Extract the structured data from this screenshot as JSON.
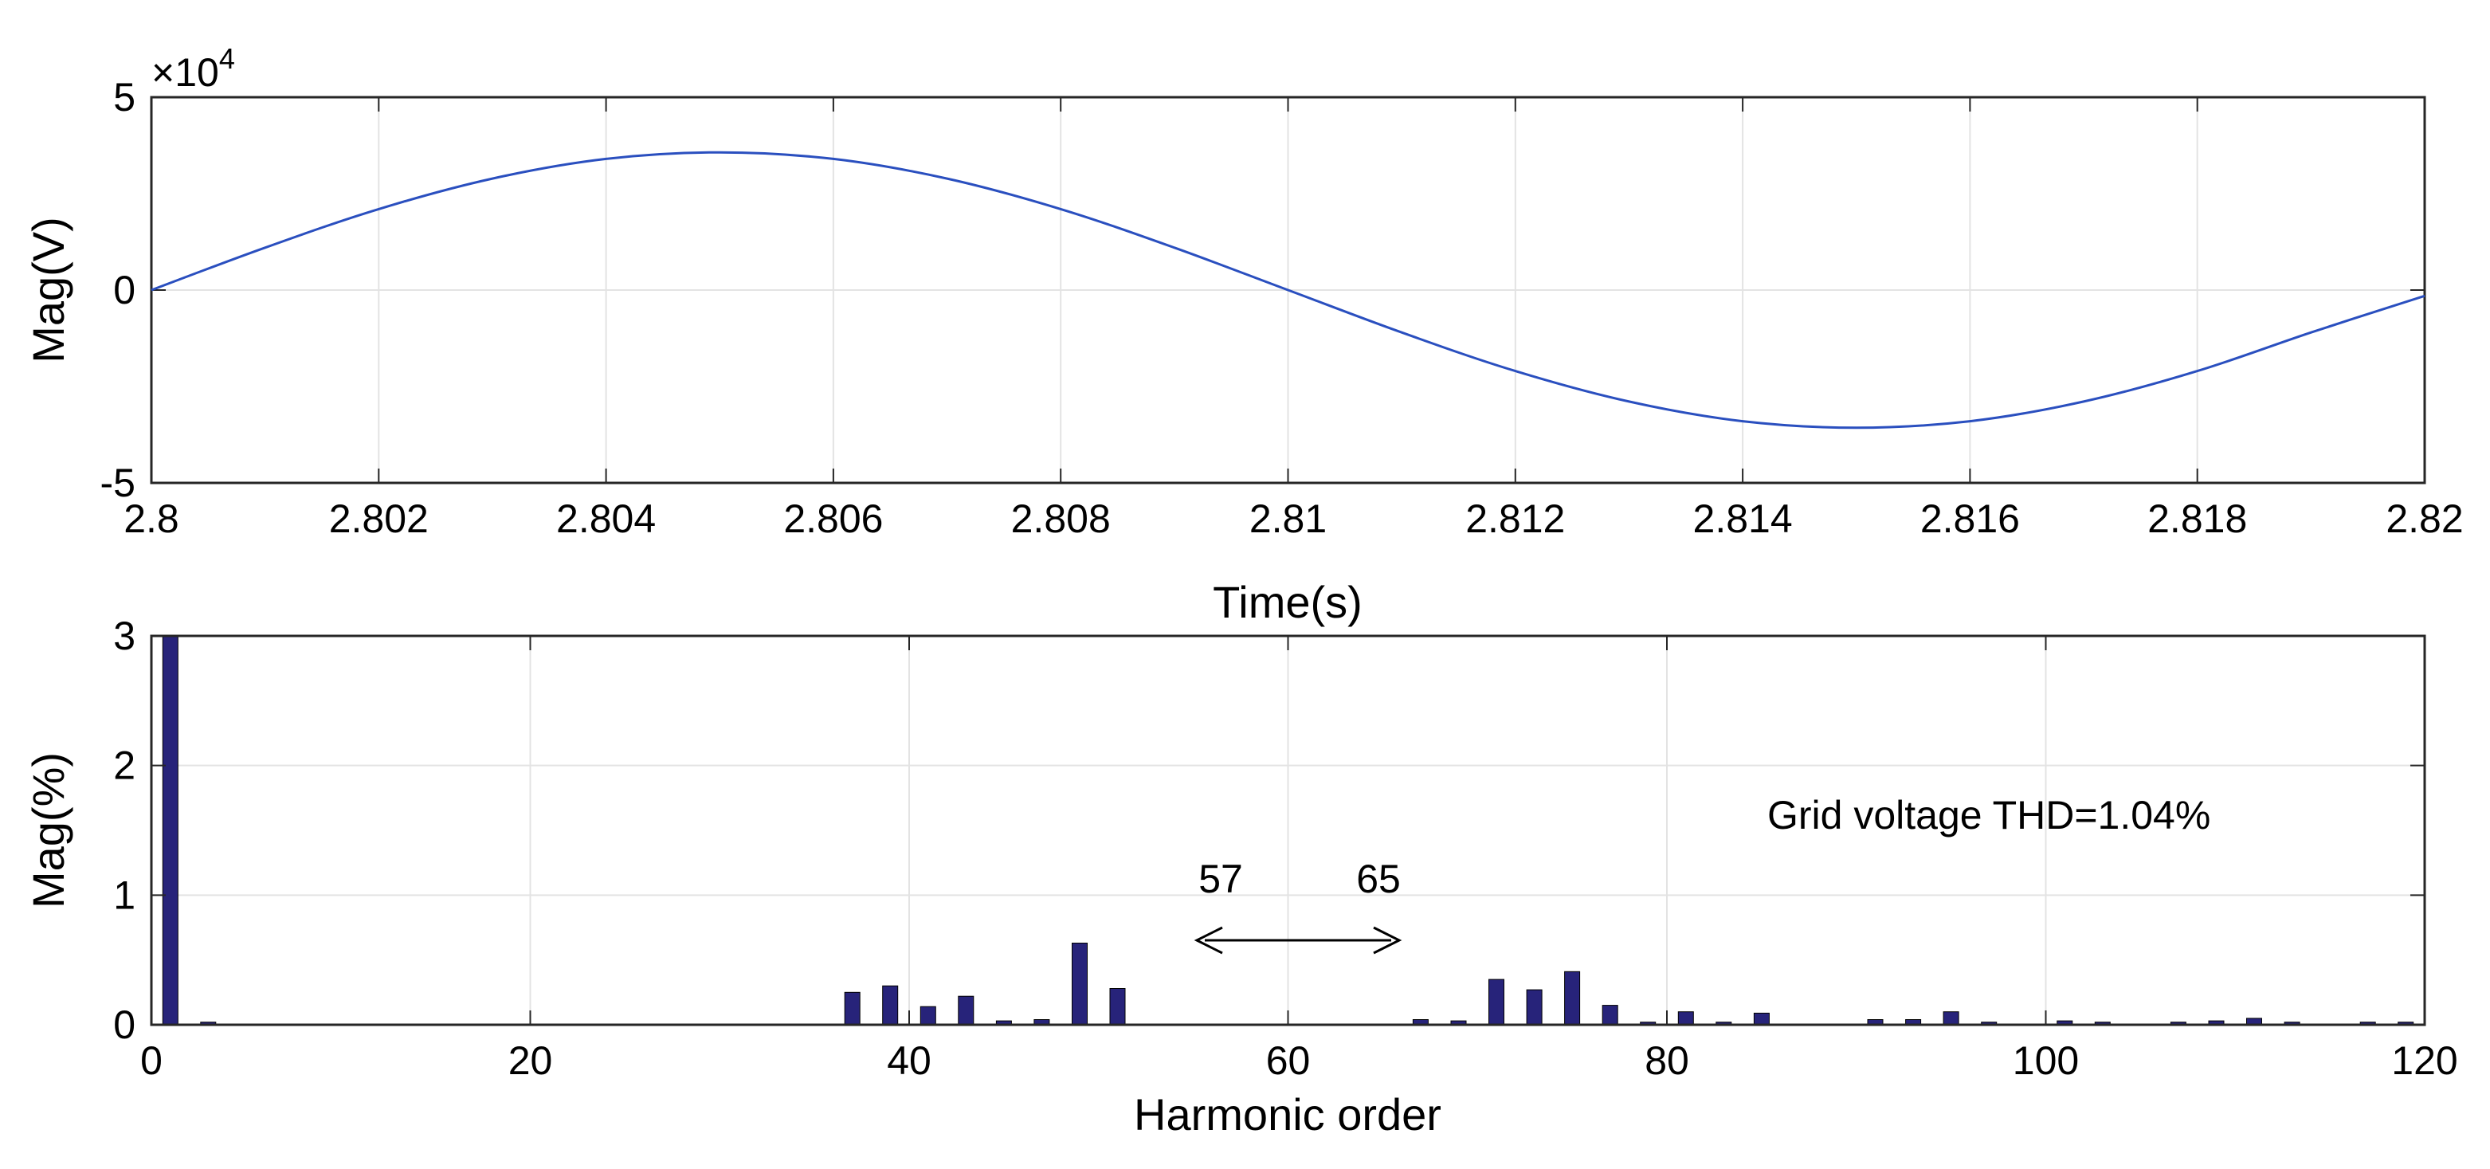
{
  "chart_data": [
    {
      "type": "line",
      "xlabel": "Time(s)",
      "ylabel": "Mag(V)",
      "y_exponent_label": "×10",
      "y_exponent_power": "4",
      "xlim": [
        2.8,
        2.82
      ],
      "ylim": [
        -50000,
        50000
      ],
      "x_ticks": [
        2.8,
        2.802,
        2.804,
        2.806,
        2.808,
        2.81,
        2.812,
        2.814,
        2.816,
        2.818,
        2.82
      ],
      "x_tick_labels": [
        "2.8",
        "2.802",
        "2.804",
        "2.806",
        "2.808",
        "2.81",
        "2.812",
        "2.814",
        "2.816",
        "2.818",
        "2.82"
      ],
      "y_ticks": [
        -50000,
        0,
        50000
      ],
      "y_tick_labels": [
        "-5",
        "0",
        "5"
      ],
      "grid": true,
      "series_color": "#2a4fbf",
      "x": [
        2.8,
        2.801,
        2.802,
        2.803,
        2.804,
        2.805,
        2.806,
        2.807,
        2.808,
        2.809,
        2.81,
        2.811,
        2.812,
        2.813,
        2.814,
        2.815,
        2.816,
        2.817,
        2.818,
        2.819,
        2.82
      ],
      "y": [
        0,
        11000,
        21000,
        28900,
        34000,
        35700,
        34000,
        28900,
        21000,
        11000,
        0,
        -11000,
        -21000,
        -28900,
        -34000,
        -35700,
        -34000,
        -28900,
        -21000,
        -11000,
        -1500
      ]
    },
    {
      "type": "bar",
      "xlabel": "Harmonic order",
      "ylabel": "Mag(%)",
      "xlim": [
        0,
        120
      ],
      "ylim": [
        0,
        3
      ],
      "x_ticks": [
        0,
        20,
        40,
        60,
        80,
        100,
        120
      ],
      "x_tick_labels": [
        "0",
        "20",
        "40",
        "60",
        "80",
        "100",
        "120"
      ],
      "y_ticks": [
        0,
        1,
        2,
        3
      ],
      "y_tick_labels": [
        "0",
        "1",
        "2",
        "3"
      ],
      "grid": true,
      "bar_color": "#27237a",
      "categories": [
        1,
        3,
        37,
        39,
        41,
        43,
        45,
        47,
        49,
        51,
        67,
        69,
        71,
        73,
        75,
        77,
        79,
        81,
        83,
        85,
        91,
        93,
        95,
        97,
        101,
        103,
        107,
        109,
        111,
        113,
        117,
        119
      ],
      "values": [
        3.0,
        0.02,
        0.25,
        0.3,
        0.14,
        0.22,
        0.03,
        0.04,
        0.63,
        0.28,
        0.04,
        0.03,
        0.35,
        0.27,
        0.41,
        0.15,
        0.02,
        0.1,
        0.02,
        0.09,
        0.04,
        0.04,
        0.1,
        0.02,
        0.03,
        0.02,
        0.02,
        0.03,
        0.05,
        0.02,
        0.02,
        0.02
      ],
      "annotations": {
        "thd": "Grid voltage THD=1.04%",
        "arrow_left_label": "57",
        "arrow_right_label": "65"
      }
    }
  ]
}
